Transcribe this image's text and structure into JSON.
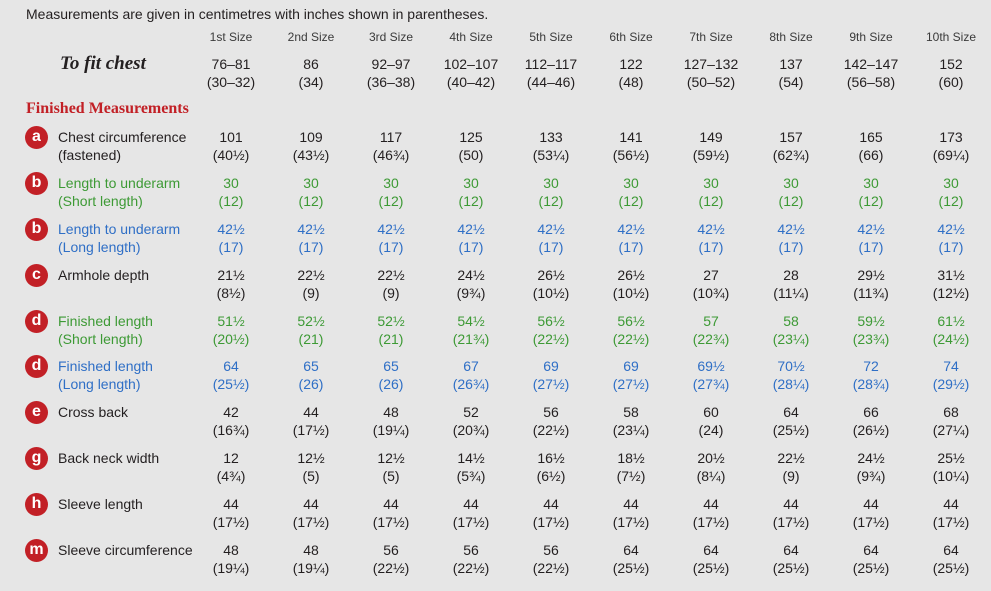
{
  "note": "Measurements are given in centimetres with inches shown in parentheses.",
  "size_headers": [
    "1st Size",
    "2nd Size",
    "3rd Size",
    "4th Size",
    "5th Size",
    "6th Size",
    "7th Size",
    "8th Size",
    "9th Size",
    "10th Size"
  ],
  "fit": {
    "label": "To fit chest",
    "cm": [
      "76–81",
      "86",
      "92–97",
      "102–107",
      "112–117",
      "122",
      "127–132",
      "137",
      "142–147",
      "152"
    ],
    "in": [
      "(30–32)",
      "(34)",
      "(36–38)",
      "(40–42)",
      "(44–46)",
      "(48)",
      "(50–52)",
      "(54)",
      "(56–58)",
      "(60)"
    ]
  },
  "section_title": "Finished Measurements",
  "colors": {
    "red": "#c22026",
    "green": "#3d9a35",
    "blue": "#2f6fc6",
    "black": "#231f20",
    "background": "#e6e6e6"
  },
  "rows": [
    {
      "letter": "a",
      "label": "Chest circumference",
      "sublabel": "(fastened)",
      "color": "black",
      "cm": [
        "101",
        "109",
        "117",
        "125",
        "133",
        "141",
        "149",
        "157",
        "165",
        "173"
      ],
      "in": [
        "(40½)",
        "(43½)",
        "(46¾)",
        "(50)",
        "(53¼)",
        "(56½)",
        "(59½)",
        "(62¾)",
        "(66)",
        "(69¼)"
      ]
    },
    {
      "letter": "b",
      "label": "Length to underarm",
      "sublabel": "(Short length)",
      "color": "green",
      "cm": [
        "30",
        "30",
        "30",
        "30",
        "30",
        "30",
        "30",
        "30",
        "30",
        "30"
      ],
      "in": [
        "(12)",
        "(12)",
        "(12)",
        "(12)",
        "(12)",
        "(12)",
        "(12)",
        "(12)",
        "(12)",
        "(12)"
      ]
    },
    {
      "letter": "b",
      "label": "Length to underarm",
      "sublabel": "(Long length)",
      "color": "blue",
      "cm": [
        "42½",
        "42½",
        "42½",
        "42½",
        "42½",
        "42½",
        "42½",
        "42½",
        "42½",
        "42½"
      ],
      "in": [
        "(17)",
        "(17)",
        "(17)",
        "(17)",
        "(17)",
        "(17)",
        "(17)",
        "(17)",
        "(17)",
        "(17)"
      ]
    },
    {
      "letter": "c",
      "label": "Armhole depth",
      "sublabel": "",
      "color": "black",
      "cm": [
        "21½",
        "22½",
        "22½",
        "24½",
        "26½",
        "26½",
        "27",
        "28",
        "29½",
        "31½"
      ],
      "in": [
        "(8½)",
        "(9)",
        "(9)",
        "(9¾)",
        "(10½)",
        "(10½)",
        "(10¾)",
        "(11¼)",
        "(11¾)",
        "(12½)"
      ]
    },
    {
      "letter": "d",
      "label": "Finished length",
      "sublabel": "(Short length)",
      "color": "green",
      "cm": [
        "51½",
        "52½",
        "52½",
        "54½",
        "56½",
        "56½",
        "57",
        "58",
        "59½",
        "61½"
      ],
      "in": [
        "(20½)",
        "(21)",
        "(21)",
        "(21¾)",
        "(22½)",
        "(22½)",
        "(22¾)",
        "(23¼)",
        "(23¾)",
        "(24½)"
      ]
    },
    {
      "letter": "d",
      "label": "Finished length",
      "sublabel": "(Long length)",
      "color": "blue",
      "cm": [
        "64",
        "65",
        "65",
        "67",
        "69",
        "69",
        "69½",
        "70½",
        "72",
        "74"
      ],
      "in": [
        "(25½)",
        "(26)",
        "(26)",
        "(26¾)",
        "(27½)",
        "(27½)",
        "(27¾)",
        "(28¼)",
        "(28¾)",
        "(29½)"
      ]
    },
    {
      "letter": "e",
      "label": "Cross back",
      "sublabel": "",
      "color": "black",
      "cm": [
        "42",
        "44",
        "48",
        "52",
        "56",
        "58",
        "60",
        "64",
        "66",
        "68"
      ],
      "in": [
        "(16¾)",
        "(17½)",
        "(19¼)",
        "(20¾)",
        "(22½)",
        "(23¼)",
        "(24)",
        "(25½)",
        "(26½)",
        "(27¼)"
      ]
    },
    {
      "letter": "g",
      "label": "Back neck width",
      "sublabel": "",
      "color": "black",
      "cm": [
        "12",
        "12½",
        "12½",
        "14½",
        "16½",
        "18½",
        "20½",
        "22½",
        "24½",
        "25½"
      ],
      "in": [
        "(4¾)",
        "(5)",
        "(5)",
        "(5¾)",
        "(6½)",
        "(7½)",
        "(8¼)",
        "(9)",
        "(9¾)",
        "(10¼)"
      ]
    },
    {
      "letter": "h",
      "label": "Sleeve length",
      "sublabel": "",
      "color": "black",
      "cm": [
        "44",
        "44",
        "44",
        "44",
        "44",
        "44",
        "44",
        "44",
        "44",
        "44"
      ],
      "in": [
        "(17½)",
        "(17½)",
        "(17½)",
        "(17½)",
        "(17½)",
        "(17½)",
        "(17½)",
        "(17½)",
        "(17½)",
        "(17½)"
      ]
    },
    {
      "letter": "m",
      "label": "Sleeve circumference",
      "sublabel": "",
      "color": "black",
      "cm": [
        "48",
        "48",
        "56",
        "56",
        "56",
        "64",
        "64",
        "64",
        "64",
        "64"
      ],
      "in": [
        "(19¼)",
        "(19¼)",
        "(22½)",
        "(22½)",
        "(22½)",
        "(25½)",
        "(25½)",
        "(25½)",
        "(25½)",
        "(25½)"
      ]
    }
  ]
}
